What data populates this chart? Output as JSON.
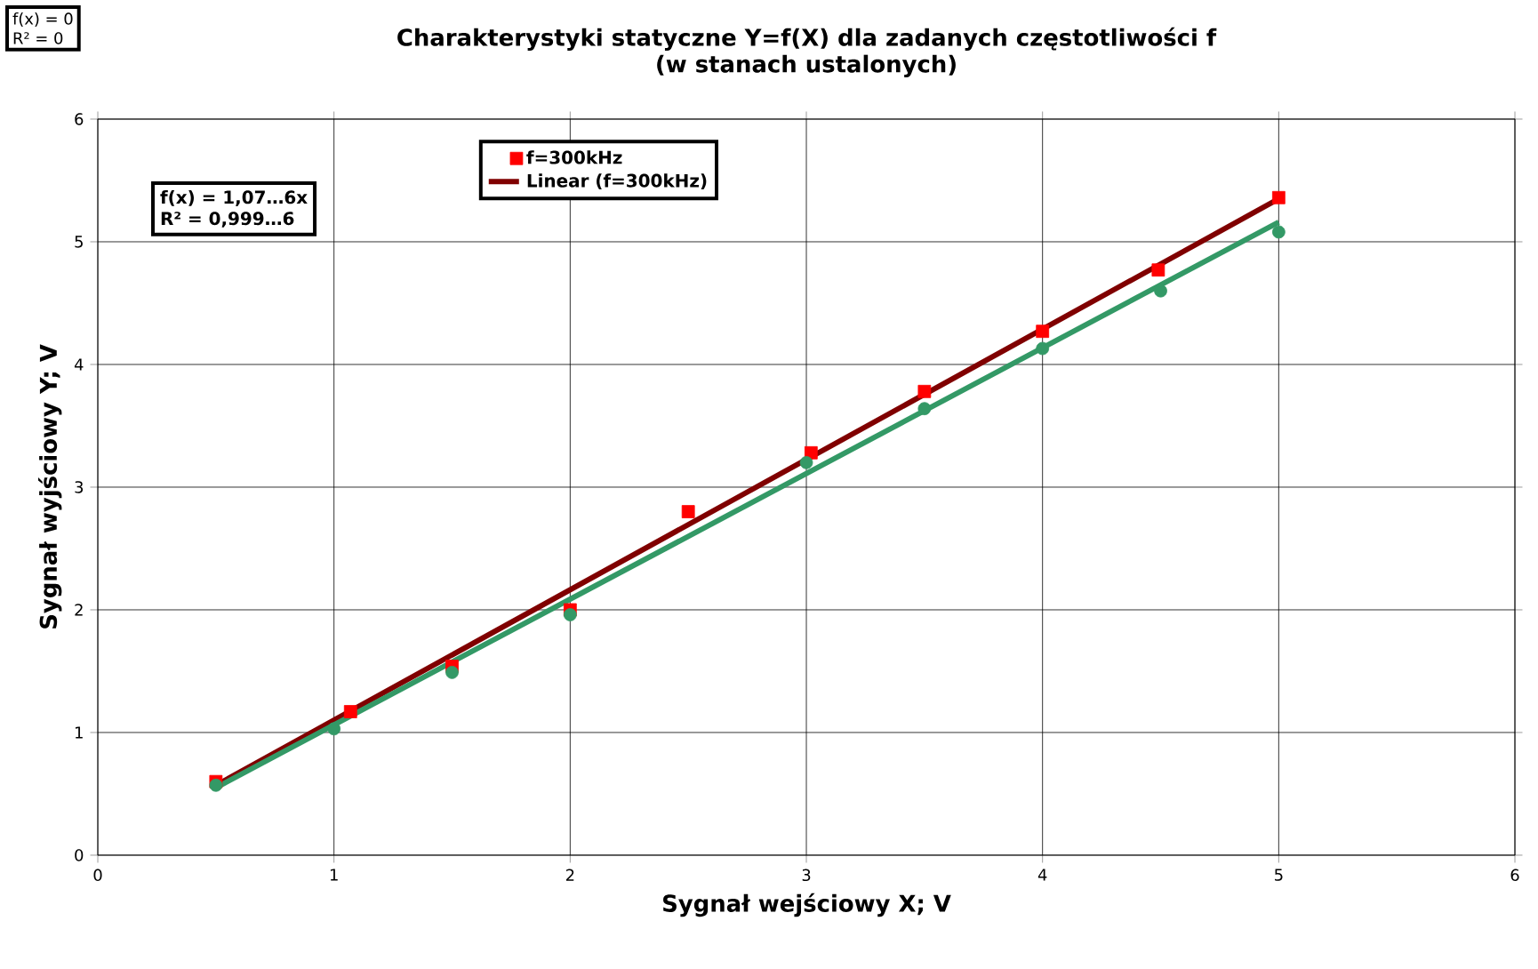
{
  "chart_data": {
    "type": "scatter",
    "title": "Charakterystyki statyczne Y=f(X) dla zadanych częstotliwości f",
    "subtitle": "(w stanach ustalonych)",
    "xlabel": "Sygnał wejściowy X; V",
    "ylabel": "Sygnał wyjściowy Y; V",
    "series": [
      {
        "name": "f=300kHz",
        "marker": "square",
        "color": "#ff0000",
        "x": [
          0.5,
          1.07,
          1.5,
          2,
          2.5,
          3.02,
          3.5,
          4,
          4.49,
          5
        ],
        "values": [
          0.6,
          1.17,
          1.54,
          2.0,
          2.8,
          3.28,
          3.78,
          4.27,
          4.77,
          5.36
        ]
      },
      {
        "marker": "circle",
        "color": "#339966",
        "x": [
          0.5,
          1,
          1.5,
          2,
          3,
          3.5,
          4,
          4.5,
          5
        ],
        "values": [
          0.57,
          1.03,
          1.49,
          1.96,
          3.2,
          3.64,
          4.13,
          4.6,
          5.08
        ]
      },
      {
        "name": "Linear (f=300kHz)",
        "type": "line",
        "marker": "none",
        "color": "#800000",
        "x": [
          0.5,
          5
        ],
        "values": [
          0.57,
          5.35
        ]
      },
      {
        "type": "line",
        "marker": "none",
        "color": "#339966",
        "x": [
          0.5,
          5
        ],
        "values": [
          0.55,
          5.16
        ]
      }
    ],
    "xlim": [
      0,
      6
    ],
    "ylim": [
      0,
      6
    ],
    "xticks": [
      0,
      1,
      2,
      3,
      4,
      5,
      6
    ],
    "yticks": [
      0,
      1,
      2,
      3,
      4,
      5,
      6
    ],
    "grid": true,
    "legend": "top left",
    "annotations": [
      "f(x) = 0",
      "R² = 0",
      "f(x) = 1,07…6x",
      "R² = 0,999…6"
    ]
  }
}
